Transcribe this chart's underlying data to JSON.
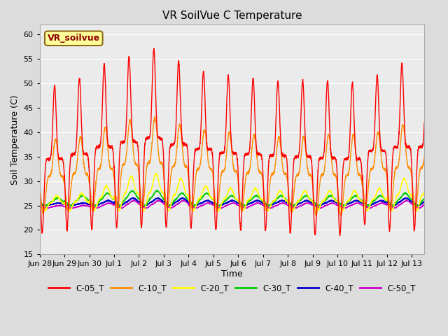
{
  "title": "VR SoilVue C Temperature",
  "xlabel": "Time",
  "ylabel": "Soil Temperature (C)",
  "ylim": [
    15,
    62
  ],
  "yticks": [
    15,
    20,
    25,
    30,
    35,
    40,
    45,
    50,
    55,
    60
  ],
  "annotation": "VR_soilvue",
  "annotation_color": "#8B0000",
  "annotation_bg": "#FFFF99",
  "annotation_border": "#8B6914",
  "series_colors": {
    "C-05_T": "#FF0000",
    "C-10_T": "#FF8C00",
    "C-20_T": "#FFFF00",
    "C-30_T": "#00CC00",
    "C-40_T": "#0000CC",
    "C-50_T": "#CC00CC"
  },
  "bg_color": "#DCDCDC",
  "plot_area_color": "#EBEBEB",
  "date_labels": [
    "Jun 28",
    "Jun 29",
    "Jun 30",
    "Jul 1",
    "Jul 2",
    "Jul 3",
    "Jul 4",
    "Jul 5",
    "Jul 6",
    "Jul 7",
    "Jul 8",
    "Jul 9",
    "Jul 10",
    "Jul 11",
    "Jul 12",
    "Jul 13"
  ],
  "date_positions": [
    0,
    1,
    2,
    3,
    4,
    5,
    6,
    7,
    8,
    9,
    10,
    11,
    12,
    13,
    14,
    15
  ],
  "peaks_c05": [
    49.5,
    51.0,
    54.0,
    55.5,
    57.0,
    54.5,
    52.5,
    51.5,
    51.0,
    50.5,
    50.5,
    50.5,
    50.0,
    51.5,
    54.0
  ],
  "peaks_c10": [
    38.5,
    39.0,
    41.0,
    42.5,
    43.0,
    41.5,
    40.5,
    40.0,
    39.5,
    39.0,
    39.0,
    39.5,
    39.5,
    40.0,
    41.5
  ],
  "peaks_c20": [
    27.0,
    27.5,
    29.0,
    31.0,
    31.5,
    30.5,
    29.0,
    28.5,
    28.5,
    28.0,
    28.0,
    28.0,
    28.0,
    28.5,
    30.5
  ],
  "peaks_c30": [
    26.5,
    27.0,
    27.5,
    28.0,
    28.0,
    27.5,
    27.5,
    27.0,
    27.0,
    27.0,
    27.0,
    27.0,
    27.0,
    27.0,
    27.5
  ],
  "peaks_c40": [
    25.5,
    25.5,
    26.0,
    26.5,
    26.5,
    26.5,
    26.0,
    26.0,
    26.0,
    26.0,
    26.0,
    26.0,
    26.0,
    26.0,
    26.5
  ],
  "peaks_c50": [
    25.0,
    25.0,
    25.5,
    26.0,
    26.0,
    26.0,
    25.5,
    25.5,
    25.5,
    25.5,
    25.5,
    25.5,
    25.5,
    25.5,
    26.0
  ],
  "mins_c05": [
    19.5,
    20.0,
    20.0,
    20.5,
    20.5,
    20.5,
    20.5,
    20.0,
    20.0,
    20.0,
    19.5,
    19.0,
    19.0,
    21.0,
    20.0
  ],
  "base_temp": 24.0
}
